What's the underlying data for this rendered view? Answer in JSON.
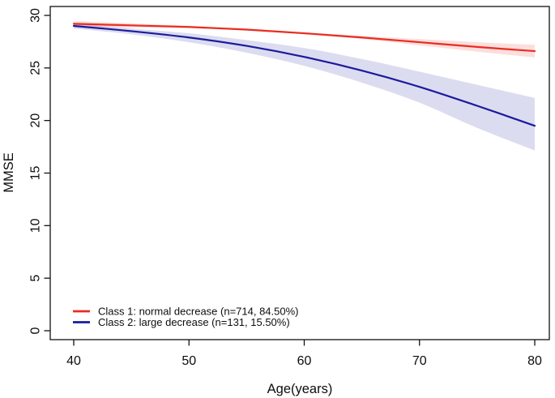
{
  "figure": {
    "background": "#ffffff",
    "axis_color": "#111111",
    "text_color": "#0d0d0d"
  },
  "chart_data": {
    "type": "line",
    "title": "",
    "xlabel": "Age(years)",
    "ylabel": "MMSE",
    "xlim": [
      40,
      80
    ],
    "ylim": [
      0,
      30
    ],
    "grid": false,
    "legend_position": "bottom-left-inside",
    "x_ticks": [
      "40",
      "50",
      "60",
      "70",
      "80"
    ],
    "y_ticks": [
      "0",
      "5",
      "10",
      "15",
      "20",
      "25",
      "30"
    ],
    "x": [
      40,
      45,
      50,
      55,
      60,
      65,
      70,
      75,
      80
    ],
    "series": [
      {
        "name": "class1",
        "label": "Class 1: normal decrease (n=714, 84.50%)",
        "color": "#e92d22",
        "band_color": "rgba(240,70,60,0.18)",
        "mean": [
          29.2,
          29.05,
          28.9,
          28.65,
          28.3,
          27.9,
          27.45,
          27.0,
          26.6
        ],
        "upper": [
          29.45,
          29.25,
          29.0,
          28.75,
          28.4,
          28.05,
          27.75,
          27.45,
          27.2
        ],
        "lower": [
          28.95,
          28.85,
          28.8,
          28.55,
          28.2,
          27.75,
          27.15,
          26.55,
          26.0
        ]
      },
      {
        "name": "class2",
        "label": "Class 2: large decrease (n=131, 15.50%)",
        "color": "#1b1b9e",
        "band_color": "rgba(95,95,185,0.22)",
        "mean": [
          29.0,
          28.5,
          27.9,
          27.1,
          26.05,
          24.75,
          23.2,
          21.4,
          19.5
        ],
        "upper": [
          29.25,
          28.75,
          28.3,
          27.65,
          26.9,
          25.85,
          24.65,
          23.4,
          22.15
        ],
        "lower": [
          28.75,
          28.2,
          27.45,
          26.45,
          25.2,
          23.6,
          21.7,
          19.3,
          17.15
        ]
      }
    ]
  }
}
